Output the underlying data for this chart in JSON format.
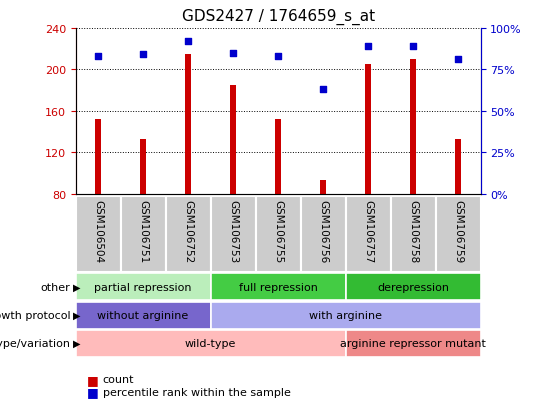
{
  "title": "GDS2427 / 1764659_s_at",
  "samples": [
    "GSM106504",
    "GSM106751",
    "GSM106752",
    "GSM106753",
    "GSM106755",
    "GSM106756",
    "GSM106757",
    "GSM106758",
    "GSM106759"
  ],
  "counts": [
    152,
    133,
    215,
    185,
    152,
    93,
    205,
    210,
    133
  ],
  "percentile_ranks": [
    83,
    84,
    92,
    85,
    83,
    63,
    89,
    89,
    81
  ],
  "ymin": 80,
  "ymax": 240,
  "y2min": 0,
  "y2max": 100,
  "yticks": [
    80,
    120,
    160,
    200,
    240
  ],
  "y2ticks": [
    0,
    25,
    50,
    75,
    100
  ],
  "bar_color": "#cc0000",
  "dot_color": "#0000cc",
  "annotation_rows": [
    {
      "label": "other",
      "segments": [
        {
          "text": "partial repression",
          "start": 0,
          "end": 3,
          "color": "#bbeebb"
        },
        {
          "text": "full repression",
          "start": 3,
          "end": 6,
          "color": "#44cc44"
        },
        {
          "text": "derepression",
          "start": 6,
          "end": 9,
          "color": "#33bb33"
        }
      ]
    },
    {
      "label": "growth protocol",
      "segments": [
        {
          "text": "without arginine",
          "start": 0,
          "end": 3,
          "color": "#7766cc"
        },
        {
          "text": "with arginine",
          "start": 3,
          "end": 9,
          "color": "#aaaaee"
        }
      ]
    },
    {
      "label": "genotype/variation",
      "segments": [
        {
          "text": "wild-type",
          "start": 0,
          "end": 6,
          "color": "#ffbbbb"
        },
        {
          "text": "arginine repressor mutant",
          "start": 6,
          "end": 9,
          "color": "#ee8888"
        }
      ]
    }
  ],
  "legend_count_color": "#cc0000",
  "legend_dot_color": "#0000cc",
  "bg_color": "#ffffff",
  "tick_label_color_left": "#cc0000",
  "tick_label_color_right": "#0000cc",
  "grid_color": "#000000",
  "xtick_bg_color": "#cccccc",
  "xtick_border_color": "#ffffff",
  "bar_width": 0.12
}
